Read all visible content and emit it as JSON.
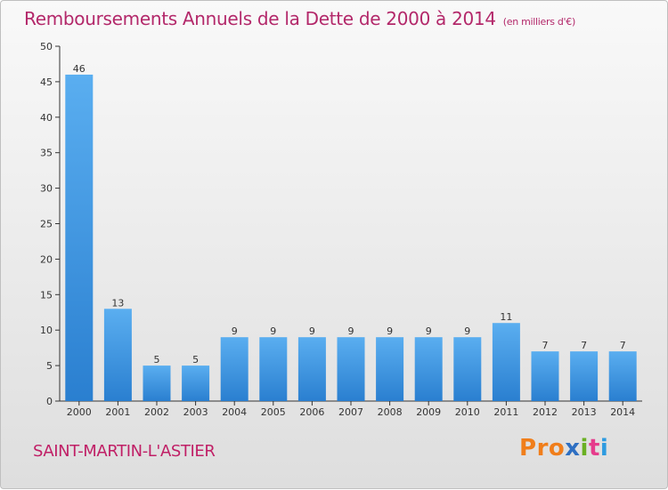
{
  "header": {
    "title": "Remboursements Annuels de la Dette de 2000 à 2014",
    "subtitle": "(en milliers d'€)"
  },
  "footer": {
    "commune": "SAINT-MARTIN-L'ASTIER",
    "brand_letters": [
      "P",
      "r",
      "o",
      "x",
      "i",
      "t",
      "i"
    ],
    "brand_colors": [
      "#f07e1b",
      "#f07e1b",
      "#f07e1b",
      "#2e6fc2",
      "#6ab023",
      "#e63c8c",
      "#2e9be0"
    ]
  },
  "colors": {
    "bar_top": "#5aaef0",
    "bar_bottom": "#2a7fd0",
    "title": "#b3286a",
    "axis": "#333333"
  },
  "chart_data": {
    "type": "bar",
    "categories": [
      "2000",
      "2001",
      "2002",
      "2003",
      "2004",
      "2005",
      "2006",
      "2007",
      "2008",
      "2009",
      "2010",
      "2011",
      "2012",
      "2013",
      "2014"
    ],
    "values": [
      46,
      13,
      5,
      5,
      9,
      9,
      9,
      9,
      9,
      9,
      9,
      11,
      7,
      7,
      7
    ],
    "ylim": [
      0,
      50
    ],
    "yticks": [
      0,
      5,
      10,
      15,
      20,
      25,
      30,
      35,
      40,
      45,
      50
    ],
    "grid": false,
    "data_labels": true
  }
}
